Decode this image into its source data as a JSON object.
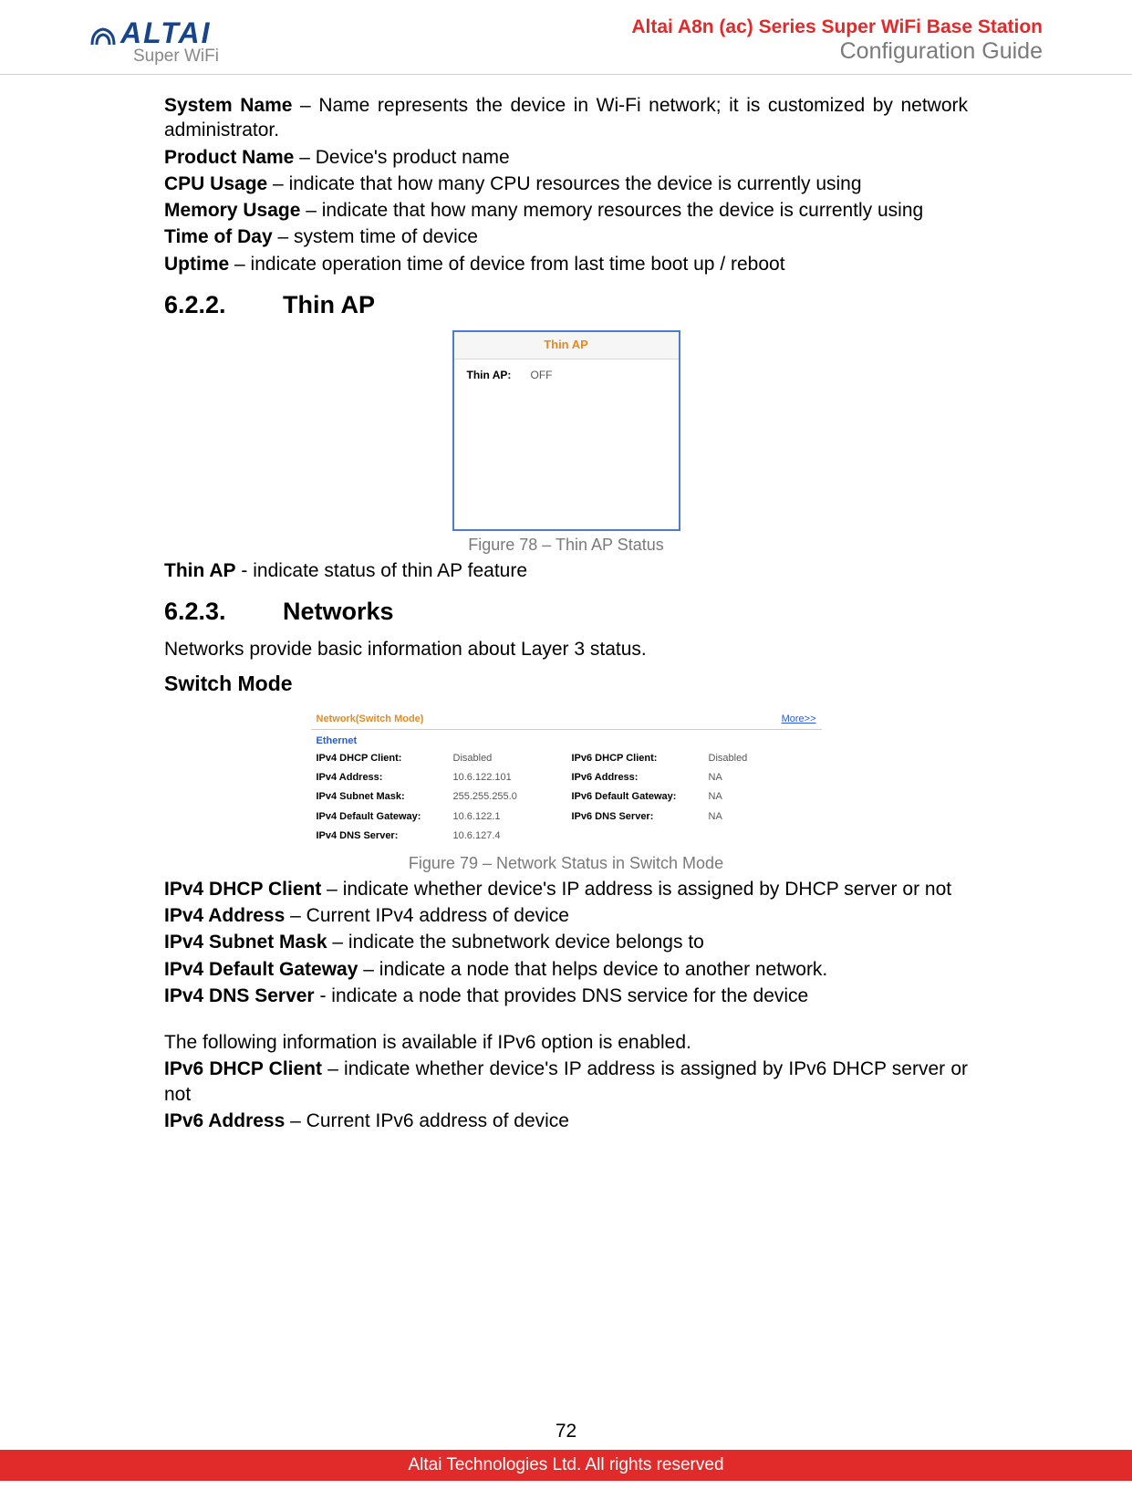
{
  "header": {
    "logo_text": "ALTAI",
    "logo_sub": "Super WiFi",
    "title": "Altai A8n (ac) Series Super WiFi Base Station",
    "subtitle": "Configuration Guide"
  },
  "defs_top": [
    {
      "term": "System Name",
      "sep": " – ",
      "desc": "Name represents the device in Wi-Fi network; it is customized by network administrator."
    },
    {
      "term": "Product Name",
      "sep": " – ",
      "desc": "Device's product name"
    },
    {
      "term": "CPU Usage",
      "sep": " – ",
      "desc": "indicate that how many CPU resources the device is currently using"
    },
    {
      "term": "Memory Usage",
      "sep": " – ",
      "desc": "indicate that how many memory resources the device is currently using"
    },
    {
      "term": "Time of Day",
      "sep": " – ",
      "desc": "system time of device"
    },
    {
      "term": "Uptime",
      "sep": " – ",
      "desc": "indicate operation time of device from last time boot up / reboot"
    }
  ],
  "section_622": {
    "num": "6.2.2.",
    "title": "Thin AP"
  },
  "thinap_fig": {
    "box_title": "Thin AP",
    "row_label": "Thin AP:",
    "row_value": "OFF",
    "caption": "Figure 78 – Thin AP Status",
    "border_color": "#4a7ec9",
    "title_color": "#e68a1e"
  },
  "thinap_def": {
    "term": "Thin AP",
    "sep": " - ",
    "desc": "indicate status of thin AP feature"
  },
  "section_623": {
    "num": "6.2.3.",
    "title": "Networks"
  },
  "networks_intro": "Networks provide basic information about Layer 3 status.",
  "switch_mode_heading": "Switch Mode",
  "net_fig": {
    "head_left": "Network(Switch Mode)",
    "head_right": "More>>",
    "subhead": "Ethernet",
    "rows": [
      {
        "k1": "IPv4 DHCP Client:",
        "v1": "Disabled",
        "k2": "IPv6 DHCP Client:",
        "v2": "Disabled"
      },
      {
        "k1": "IPv4 Address:",
        "v1": "10.6.122.101",
        "k2": "IPv6 Address:",
        "v2": "NA"
      },
      {
        "k1": "IPv4 Subnet Mask:",
        "v1": "255.255.255.0",
        "k2": "IPv6 Default Gateway:",
        "v2": "NA"
      },
      {
        "k1": "IPv4 Default Gateway:",
        "v1": "10.6.122.1",
        "k2": "IPv6 DNS Server:",
        "v2": "NA"
      },
      {
        "k1": "IPv4 DNS Server:",
        "v1": "10.6.127.4",
        "k2": "",
        "v2": ""
      }
    ],
    "caption": "Figure 79 – Network Status in Switch Mode",
    "head_color": "#e68a1e",
    "link_color": "#2a5bd7"
  },
  "defs_net": [
    {
      "term": "IPv4 DHCP Client",
      "sep": " – ",
      "desc": "indicate whether device's IP address is assigned by DHCP server or not"
    },
    {
      "term": "IPv4 Address",
      "sep": " – ",
      "desc": "Current IPv4 address of device"
    },
    {
      "term": "IPv4 Subnet Mask",
      "sep": " – ",
      "desc": "indicate the subnetwork device belongs to"
    },
    {
      "term": "IPv4 Default Gateway",
      "sep": " – ",
      "desc": "indicate a node that helps device to another network."
    },
    {
      "term": "IPv4 DNS Server",
      "sep": " - ",
      "desc": "indicate a node that provides DNS service for the device"
    }
  ],
  "ipv6_intro": "The following information is available if IPv6 option is enabled.",
  "defs_ipv6": [
    {
      "term": "IPv6 DHCP Client",
      "sep": " – ",
      "desc": "indicate whether device's IP address is assigned by IPv6 DHCP server or not"
    },
    {
      "term": "IPv6 Address",
      "sep": " – ",
      "desc": "Current IPv6 address of device"
    }
  ],
  "page_number": "72",
  "footer": "Altai Technologies Ltd. All rights reserved",
  "colors": {
    "brand_red": "#e12a2a",
    "brand_blue": "#18448a",
    "gray_text": "#7a7a7a"
  }
}
